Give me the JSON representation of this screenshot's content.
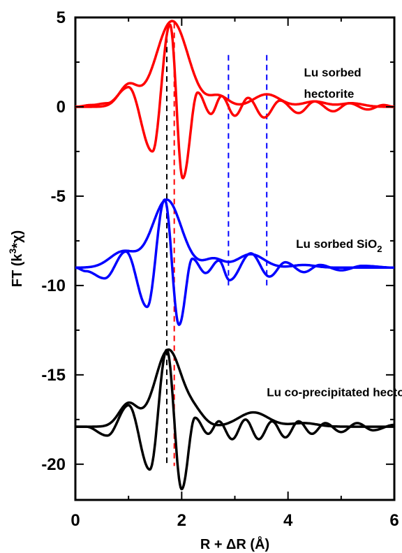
{
  "chart_data": {
    "type": "line",
    "title": "",
    "xlabel": "R + ΔR (Å)",
    "ylabel": "FT (k³*χ)",
    "xlim": [
      0,
      6
    ],
    "ylim": [
      -22,
      5
    ],
    "x_ticks": [
      0,
      2,
      4,
      6
    ],
    "x_tick_labels": [
      "0",
      "2",
      "4",
      "6"
    ],
    "y_ticks": [
      5,
      0,
      -5,
      -10,
      -15,
      -20
    ],
    "y_tick_labels": [
      "5",
      "0",
      "-5",
      "-10",
      "-15",
      "-20"
    ],
    "grid": false,
    "series": [
      {
        "name": "Lu sorbed hectorite",
        "color": "#ff0000",
        "offset": 0,
        "magnitude": {
          "peaks": [
            [
              1.0,
              1.2,
              0.25
            ],
            [
              1.82,
              4.8,
              0.42
            ],
            [
              2.7,
              0.6,
              0.25
            ],
            [
              3.6,
              0.7,
              0.35
            ],
            [
              4.5,
              0.3,
              0.3
            ],
            [
              5.2,
              0.2,
              0.3
            ]
          ],
          "baseline": 0.0
        },
        "imaginary": {
          "extrema": [
            [
              0.3,
              0.1
            ],
            [
              0.6,
              0.2
            ],
            [
              1.0,
              1.1
            ],
            [
              1.45,
              -2.5
            ],
            [
              1.78,
              4.6
            ],
            [
              2.02,
              -4.0
            ],
            [
              2.3,
              0.8
            ],
            [
              2.55,
              -0.4
            ],
            [
              2.75,
              0.6
            ],
            [
              3.0,
              -0.5
            ],
            [
              3.25,
              0.5
            ],
            [
              3.55,
              -0.6
            ],
            [
              3.85,
              0.35
            ],
            [
              4.2,
              -0.35
            ],
            [
              4.5,
              0.3
            ],
            [
              4.85,
              -0.25
            ],
            [
              5.15,
              0.2
            ],
            [
              5.5,
              -0.15
            ],
            [
              5.8,
              0.1
            ],
            [
              6.0,
              0.0
            ]
          ]
        }
      },
      {
        "name": "Lu sorbed SiO2",
        "color": "#0000ff",
        "offset": -9,
        "magnitude": {
          "peaks": [
            [
              0.9,
              0.9,
              0.35
            ],
            [
              1.72,
              3.8,
              0.38
            ],
            [
              2.6,
              0.5,
              0.25
            ],
            [
              3.3,
              0.75,
              0.35
            ],
            [
              4.3,
              0.15,
              0.3
            ]
          ],
          "baseline": 0.0
        },
        "imaginary": {
          "extrema": [
            [
              0.2,
              -0.2
            ],
            [
              0.55,
              -0.6
            ],
            [
              0.95,
              0.9
            ],
            [
              1.35,
              -2.2
            ],
            [
              1.68,
              3.8
            ],
            [
              1.95,
              -3.2
            ],
            [
              2.2,
              0.5
            ],
            [
              2.45,
              -0.3
            ],
            [
              2.7,
              0.4
            ],
            [
              2.9,
              -0.7
            ],
            [
              3.3,
              0.8
            ],
            [
              3.65,
              -0.5
            ],
            [
              3.95,
              0.3
            ],
            [
              4.3,
              -0.25
            ],
            [
              4.6,
              0.15
            ],
            [
              5.0,
              -0.15
            ],
            [
              5.4,
              0.1
            ],
            [
              6.0,
              0.0
            ]
          ]
        }
      },
      {
        "name": "Lu co-precipitated hectorite",
        "color": "#000000",
        "offset": -17.9,
        "magnitude": {
          "peaks": [
            [
              1.0,
              1.3,
              0.25
            ],
            [
              1.75,
              4.3,
              0.35
            ],
            [
              2.25,
              0.7,
              0.25
            ],
            [
              3.35,
              0.8,
              0.4
            ],
            [
              4.3,
              0.2,
              0.35
            ]
          ],
          "baseline": 0.0
        },
        "imaginary": {
          "extrema": [
            [
              0.2,
              0.0
            ],
            [
              0.6,
              -0.5
            ],
            [
              1.0,
              1.2
            ],
            [
              1.4,
              -2.4
            ],
            [
              1.72,
              4.3
            ],
            [
              2.0,
              -3.5
            ],
            [
              2.25,
              0.5
            ],
            [
              2.5,
              -0.4
            ],
            [
              2.7,
              0.3
            ],
            [
              2.95,
              -0.7
            ],
            [
              3.2,
              0.4
            ],
            [
              3.45,
              -0.7
            ],
            [
              3.7,
              0.3
            ],
            [
              3.95,
              -0.6
            ],
            [
              4.2,
              0.3
            ],
            [
              4.45,
              -0.4
            ],
            [
              4.7,
              0.2
            ],
            [
              5.0,
              -0.3
            ],
            [
              5.3,
              0.2
            ],
            [
              5.6,
              -0.2
            ],
            [
              6.0,
              0.1
            ]
          ]
        }
      }
    ],
    "reference_lines": [
      {
        "x": 1.72,
        "y_range": [
          -20.1,
          3.9
        ],
        "color": "#000000",
        "style": "dashed"
      },
      {
        "x": 1.86,
        "y_range": [
          -20.1,
          4.7
        ],
        "color": "#ff0000",
        "style": "dashed"
      },
      {
        "x": 2.88,
        "y_range": [
          -10.0,
          2.9
        ],
        "color": "#0000ff",
        "style": "dashed"
      },
      {
        "x": 3.6,
        "y_range": [
          -10.0,
          2.9
        ],
        "color": "#0000ff",
        "style": "dashed"
      }
    ],
    "annotations": [
      {
        "text": "Lu sorbed",
        "x": 4.3,
        "y": 1.7
      },
      {
        "text": "hectorite",
        "x": 4.3,
        "y": 0.5
      },
      {
        "text": "Lu sorbed SiO",
        "subscript": "2",
        "x": 4.15,
        "y": -7.9
      },
      {
        "text": "Lu co-precipitated hectorite",
        "x": 3.6,
        "y": -16.2
      }
    ]
  }
}
